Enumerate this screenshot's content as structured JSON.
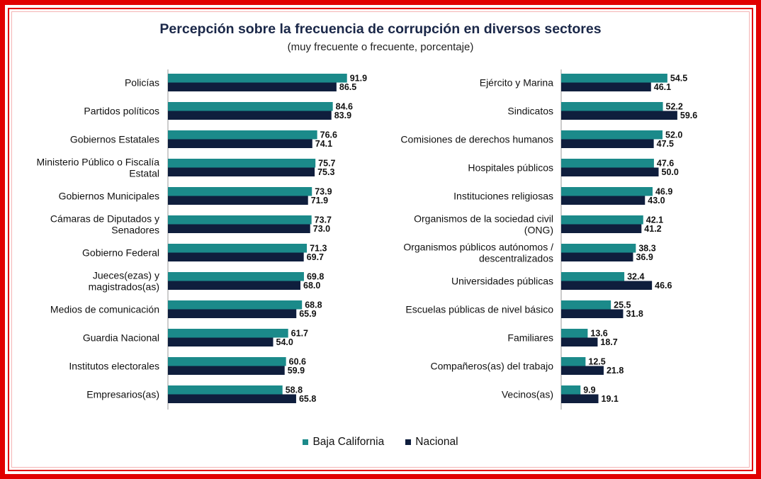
{
  "colors": {
    "baja_california": "#1b8a8a",
    "nacional": "#0f1e3d",
    "frame": "#e10000"
  },
  "chart_data": {
    "type": "bar",
    "orientation": "horizontal",
    "title": "Percepción sobre la frecuencia de corrupción en diversos sectores",
    "subtitle": "(muy frecuente o frecuente, porcentaje)",
    "legend": [
      "Baja California",
      "Nacional"
    ],
    "legend_position": "bottom",
    "grid": false,
    "xlim": [
      0,
      100
    ],
    "panels": [
      {
        "categories": [
          [
            "Policías"
          ],
          [
            "Partidos políticos"
          ],
          [
            "Gobiernos Estatales"
          ],
          [
            "Ministerio Público o Fiscalía",
            "Estatal"
          ],
          [
            "Gobiernos Municipales"
          ],
          [
            "Cámaras de Diputados y",
            "Senadores"
          ],
          [
            "Gobierno Federal"
          ],
          [
            "Jueces(ezas) y",
            "magistrados(as)"
          ],
          [
            "Medios de comunicación"
          ],
          [
            "Guardia Nacional"
          ],
          [
            "Institutos electorales"
          ],
          [
            "Empresarios(as)"
          ]
        ],
        "series": [
          {
            "name": "Baja California",
            "values": [
              91.9,
              84.6,
              76.6,
              75.7,
              73.9,
              73.7,
              71.3,
              69.8,
              68.8,
              61.7,
              60.6,
              58.8
            ]
          },
          {
            "name": "Nacional",
            "values": [
              86.5,
              83.9,
              74.1,
              75.3,
              71.9,
              73.0,
              69.7,
              68.0,
              65.9,
              54.0,
              59.9,
              65.8
            ]
          }
        ]
      },
      {
        "categories": [
          [
            "Ejército y Marina"
          ],
          [
            "Sindicatos"
          ],
          [
            "Comisiones de derechos humanos"
          ],
          [
            "Hospitales públicos"
          ],
          [
            "Instituciones religiosas"
          ],
          [
            "Organismos de la sociedad civil",
            "(ONG)"
          ],
          [
            "Organismos públicos autónomos /",
            "descentralizados"
          ],
          [
            "Universidades públicas"
          ],
          [
            "Escuelas públicas de nivel básico"
          ],
          [
            "Familiares"
          ],
          [
            "Compañeros(as) del trabajo"
          ],
          [
            "Vecinos(as)"
          ]
        ],
        "series": [
          {
            "name": "Baja California",
            "values": [
              54.5,
              52.2,
              52.0,
              47.6,
              46.9,
              42.1,
              38.3,
              32.4,
              25.5,
              13.6,
              12.5,
              9.9
            ]
          },
          {
            "name": "Nacional",
            "values": [
              46.1,
              59.6,
              47.5,
              50.0,
              43.0,
              41.2,
              36.9,
              46.6,
              31.8,
              18.7,
              21.8,
              19.1
            ]
          }
        ]
      }
    ]
  }
}
